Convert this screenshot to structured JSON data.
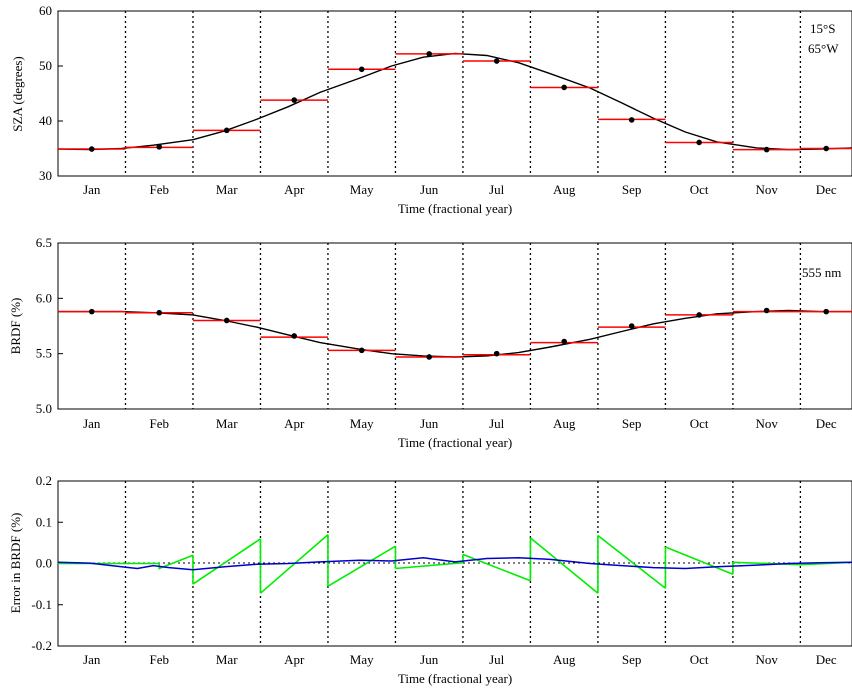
{
  "month_labels": [
    "Jan",
    "Feb",
    "Mar",
    "Apr",
    "May",
    "Jun",
    "Jul",
    "Aug",
    "Sep",
    "Oct",
    "Nov",
    "Dec"
  ],
  "chart_data": [
    {
      "type": "line",
      "xlabel": "Time (fractional year)",
      "ylabel": "SZA (degrees)",
      "ylim": [
        30,
        60
      ],
      "yticks": [
        30,
        40,
        50,
        60
      ],
      "annotations": [
        "15°S",
        "65°W"
      ],
      "series": [
        {
          "role": "continuous",
          "color": "#000000",
          "x": [
            0.0,
            0.04,
            0.08,
            0.12,
            0.17,
            0.21,
            0.25,
            0.29,
            0.33,
            0.38,
            0.42,
            0.46,
            0.5,
            0.54,
            0.58,
            0.62,
            0.67,
            0.71,
            0.75,
            0.79,
            0.83,
            0.88,
            0.92,
            0.96,
            1.0
          ],
          "y": [
            34.9,
            34.8,
            35.0,
            35.6,
            36.6,
            38.2,
            40.3,
            42.6,
            45.2,
            47.8,
            50.0,
            51.6,
            52.3,
            51.9,
            50.6,
            48.6,
            46.0,
            43.3,
            40.5,
            38.0,
            36.2,
            35.1,
            34.8,
            34.9,
            35.1
          ]
        },
        {
          "role": "monthly-mean",
          "color": "#ff0000",
          "values": [
            34.9,
            35.2,
            38.3,
            43.8,
            49.4,
            52.2,
            50.9,
            46.1,
            40.3,
            36.1,
            34.8,
            35.0
          ]
        },
        {
          "role": "mid-month-points",
          "color": "#000000",
          "values": [
            34.9,
            35.3,
            38.3,
            43.8,
            49.4,
            52.2,
            50.9,
            46.1,
            40.2,
            36.1,
            34.8,
            35.0
          ]
        }
      ]
    },
    {
      "type": "line",
      "xlabel": "Time (fractional year)",
      "ylabel": "BRDF (%)",
      "ylim": [
        5.0,
        6.5
      ],
      "yticks": [
        5.0,
        5.5,
        6.0,
        6.5
      ],
      "annotations": [
        "555 nm"
      ],
      "series": [
        {
          "role": "continuous",
          "color": "#000000",
          "x": [
            0.0,
            0.04,
            0.08,
            0.12,
            0.17,
            0.21,
            0.25,
            0.29,
            0.33,
            0.38,
            0.42,
            0.46,
            0.5,
            0.54,
            0.58,
            0.62,
            0.67,
            0.71,
            0.75,
            0.79,
            0.83,
            0.88,
            0.92,
            0.96,
            1.0
          ],
          "y": [
            5.88,
            5.88,
            5.88,
            5.87,
            5.85,
            5.8,
            5.74,
            5.67,
            5.6,
            5.54,
            5.5,
            5.48,
            5.47,
            5.48,
            5.51,
            5.56,
            5.63,
            5.7,
            5.77,
            5.82,
            5.86,
            5.88,
            5.89,
            5.88,
            5.88
          ]
        },
        {
          "role": "monthly-mean",
          "color": "#ff0000",
          "values": [
            5.88,
            5.87,
            5.8,
            5.65,
            5.53,
            5.47,
            5.49,
            5.6,
            5.74,
            5.85,
            5.88,
            5.88
          ]
        },
        {
          "role": "mid-month-points",
          "color": "#000000",
          "values": [
            5.88,
            5.87,
            5.8,
            5.66,
            5.53,
            5.47,
            5.5,
            5.61,
            5.75,
            5.85,
            5.89,
            5.88
          ]
        }
      ]
    },
    {
      "type": "line",
      "xlabel": "Time (fractional year)",
      "ylabel": "Error in BRDF (%)",
      "ylim": [
        -0.2,
        0.2
      ],
      "yticks": [
        -0.2,
        -0.1,
        0.0,
        0.1,
        0.2
      ],
      "series": [
        {
          "role": "monthly-mean-error",
          "color": "#00ee00",
          "segments": [
            [
              0.0,
              0.0,
              0.0,
              0.0
            ],
            [
              0.0,
              0.0,
              -0.012,
              0.02
            ],
            [
              -0.05,
              0.06
            ],
            [
              -0.072,
              0.07
            ],
            [
              -0.055,
              0.042
            ],
            [
              -0.012,
              0.002
            ],
            [
              0.022,
              -0.042
            ],
            [
              0.062,
              -0.072
            ],
            [
              0.068,
              -0.06
            ],
            [
              0.04,
              -0.026
            ],
            [
              0.003,
              -0.003
            ],
            [
              -0.003,
              0.003
            ]
          ]
        },
        {
          "role": "mid-month-error",
          "color": "#0000cc",
          "x": [
            0.0,
            0.04,
            0.08,
            0.1,
            0.12,
            0.14,
            0.17,
            0.21,
            0.25,
            0.29,
            0.33,
            0.38,
            0.42,
            0.46,
            0.5,
            0.54,
            0.58,
            0.62,
            0.67,
            0.71,
            0.75,
            0.79,
            0.83,
            0.88,
            0.92,
            0.96,
            1.0
          ],
          "y": [
            0.003,
            0.001,
            -0.008,
            -0.012,
            -0.005,
            -0.01,
            -0.015,
            -0.008,
            -0.002,
            0.0,
            0.004,
            0.008,
            0.006,
            0.014,
            0.004,
            0.012,
            0.014,
            0.01,
            0.0,
            -0.005,
            -0.01,
            -0.012,
            -0.008,
            -0.004,
            0.0,
            0.002,
            0.003
          ]
        }
      ]
    }
  ]
}
